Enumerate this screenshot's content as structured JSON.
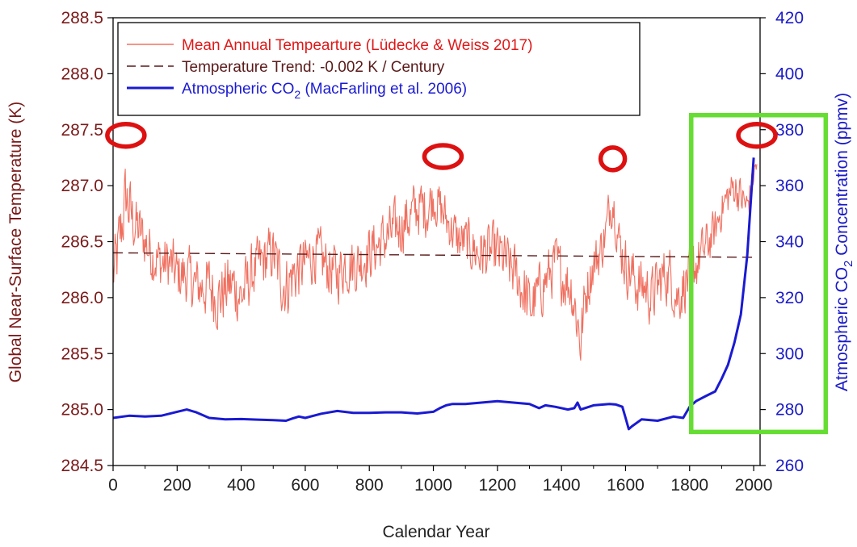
{
  "chart_data": {
    "type": "line",
    "x_axis": {
      "label": "Calendar Year",
      "range": [
        0,
        2020
      ],
      "ticks": [
        0,
        200,
        400,
        600,
        800,
        1000,
        1200,
        1400,
        1600,
        1800,
        2000
      ]
    },
    "y_left": {
      "label": "Global Near-Surface Temperature (K)",
      "range": [
        284.5,
        288.5
      ],
      "ticks": [
        "284.5",
        "285.0",
        "285.5",
        "286.0",
        "286.5",
        "287.0",
        "287.5",
        "288.0",
        "288.5"
      ]
    },
    "y_right": {
      "label_prefix": "Atmospheric CO",
      "label_sub": "2",
      "label_suffix": " Concentration (ppmv)",
      "range": [
        260,
        420
      ],
      "ticks": [
        "260",
        "280",
        "300",
        "320",
        "340",
        "360",
        "380",
        "400",
        "420"
      ]
    },
    "legend": [
      {
        "text": "Mean Annual Tempearture (Lüdecke & Weiss 2017)",
        "color": "#f07060",
        "style": "solid-thin"
      },
      {
        "text": "Temperature Trend: -0.002 K / Century",
        "color": "#5a1a1a",
        "style": "dashed"
      },
      {
        "text_prefix": "Atmospheric CO",
        "text_sub": "2",
        "text_suffix": " (MacFarling et al. 2006)",
        "color": "#1a1ad2",
        "style": "solid-thick"
      }
    ],
    "series": [
      {
        "name": "Mean Annual Temperature",
        "axis": "left",
        "color": "#f07060",
        "x": [
          0,
          10,
          20,
          30,
          40,
          50,
          60,
          80,
          100,
          120,
          150,
          180,
          200,
          230,
          260,
          300,
          330,
          360,
          380,
          400,
          430,
          460,
          500,
          520,
          540,
          560,
          600,
          630,
          660,
          700,
          720,
          760,
          800,
          840,
          880,
          920,
          950,
          980,
          1000,
          1020,
          1040,
          1060,
          1080,
          1100,
          1140,
          1180,
          1200,
          1230,
          1260,
          1290,
          1300,
          1320,
          1340,
          1360,
          1380,
          1400,
          1430,
          1450,
          1460,
          1470,
          1480,
          1500,
          1520,
          1540,
          1550,
          1560,
          1570,
          1580,
          1600,
          1620,
          1640,
          1660,
          1680,
          1700,
          1720,
          1740,
          1760,
          1780,
          1800,
          1820,
          1840,
          1860,
          1880,
          1900,
          1920,
          1940,
          1960,
          1980,
          2000,
          2010
        ],
        "mean": [
          286.2,
          286.3,
          286.5,
          286.7,
          286.9,
          286.8,
          286.7,
          286.6,
          286.5,
          286.4,
          286.3,
          286.3,
          286.2,
          286.2,
          286.1,
          286.1,
          286.0,
          286.1,
          286.1,
          286.0,
          286.2,
          286.3,
          286.4,
          286.2,
          286.1,
          286.2,
          286.3,
          286.4,
          286.3,
          286.2,
          286.3,
          286.3,
          286.4,
          286.5,
          286.6,
          286.7,
          286.8,
          286.8,
          286.9,
          286.8,
          286.7,
          286.6,
          286.5,
          286.5,
          286.4,
          286.4,
          286.4,
          286.3,
          286.2,
          286.0,
          285.9,
          286.0,
          286.1,
          286.2,
          286.3,
          286.2,
          286.1,
          285.8,
          285.6,
          285.9,
          286.1,
          286.3,
          286.4,
          286.6,
          286.8,
          286.9,
          286.7,
          286.5,
          286.3,
          286.2,
          286.1,
          286.1,
          286.0,
          286.1,
          286.2,
          286.2,
          286.0,
          286.1,
          286.2,
          286.3,
          286.4,
          286.5,
          286.6,
          286.8,
          286.9,
          287.0,
          286.9,
          286.8,
          287.1,
          287.2
        ],
        "amp": [
          0.45,
          0.45,
          0.45,
          0.45,
          0.45,
          0.45,
          0.4,
          0.35,
          0.35,
          0.35,
          0.35,
          0.35,
          0.35,
          0.35,
          0.35,
          0.4,
          0.4,
          0.4,
          0.4,
          0.4,
          0.35,
          0.35,
          0.35,
          0.4,
          0.4,
          0.4,
          0.35,
          0.35,
          0.35,
          0.35,
          0.35,
          0.35,
          0.35,
          0.35,
          0.35,
          0.35,
          0.35,
          0.35,
          0.3,
          0.3,
          0.3,
          0.3,
          0.3,
          0.3,
          0.35,
          0.35,
          0.35,
          0.35,
          0.35,
          0.4,
          0.4,
          0.35,
          0.35,
          0.35,
          0.35,
          0.35,
          0.35,
          0.4,
          0.4,
          0.35,
          0.35,
          0.3,
          0.3,
          0.3,
          0.3,
          0.3,
          0.3,
          0.3,
          0.35,
          0.35,
          0.35,
          0.35,
          0.35,
          0.35,
          0.35,
          0.35,
          0.35,
          0.35,
          0.35,
          0.35,
          0.3,
          0.3,
          0.25,
          0.25,
          0.25,
          0.25,
          0.25,
          0.25,
          0.2,
          0.2
        ]
      },
      {
        "name": "Temperature Trend",
        "axis": "left",
        "color": "#5a1a1a",
        "x": [
          0,
          2000
        ],
        "y": [
          286.4,
          286.36
        ]
      },
      {
        "name": "Atmospheric CO2",
        "axis": "right",
        "color": "#1a1ad2",
        "x": [
          0,
          50,
          100,
          150,
          200,
          230,
          260,
          300,
          350,
          400,
          450,
          500,
          540,
          560,
          580,
          600,
          650,
          700,
          750,
          800,
          850,
          900,
          950,
          1000,
          1020,
          1040,
          1060,
          1100,
          1150,
          1200,
          1250,
          1300,
          1330,
          1350,
          1380,
          1420,
          1440,
          1450,
          1460,
          1500,
          1550,
          1570,
          1590,
          1600,
          1610,
          1620,
          1650,
          1700,
          1750,
          1780,
          1800,
          1820,
          1850,
          1880,
          1900,
          1920,
          1940,
          1960,
          1980,
          2000
        ],
        "y": [
          277.0,
          277.8,
          277.5,
          277.8,
          279.2,
          280.0,
          279.0,
          277.0,
          276.5,
          276.6,
          276.4,
          276.2,
          276.0,
          276.8,
          277.5,
          277.0,
          278.5,
          279.5,
          278.8,
          278.8,
          279.0,
          279.0,
          278.6,
          279.2,
          280.5,
          281.5,
          282.0,
          282.0,
          282.5,
          283.0,
          282.5,
          282.0,
          280.5,
          281.5,
          281.0,
          280.0,
          280.5,
          282.5,
          280.0,
          281.5,
          282.0,
          281.8,
          281.0,
          277.0,
          273.0,
          274.0,
          276.5,
          276.0,
          277.5,
          277.0,
          281.0,
          283.0,
          284.8,
          286.5,
          291.0,
          296.0,
          304.0,
          314.0,
          335.0,
          370.0
        ]
      }
    ],
    "annotations": [
      {
        "shape": "ellipse",
        "color": "#dd1111",
        "x": 40,
        "y": 287.45
      },
      {
        "shape": "ellipse",
        "color": "#dd1111",
        "x": 1030,
        "y": 287.26
      },
      {
        "shape": "ellipse",
        "color": "#dd1111",
        "x": 1560,
        "y": 287.24
      },
      {
        "shape": "ellipse",
        "color": "#dd1111",
        "x": 2010,
        "y": 287.45
      },
      {
        "shape": "rectangle",
        "color": "#66dd33",
        "x0": 1805,
        "x1": 2225,
        "y0": 284.8,
        "y1": 287.63
      }
    ]
  }
}
